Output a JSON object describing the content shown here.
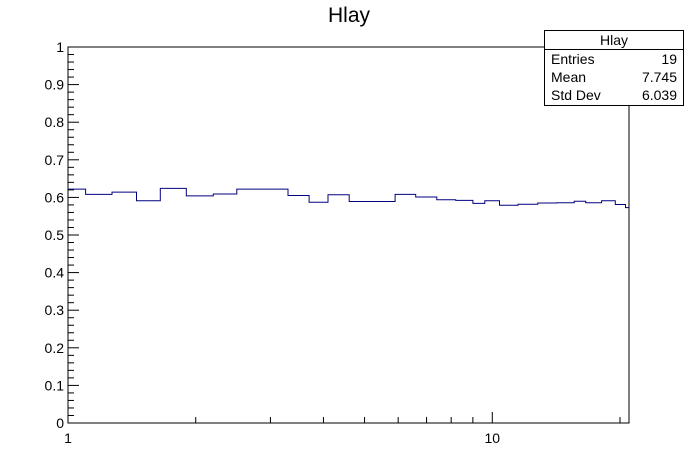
{
  "chart_data": {
    "type": "line",
    "title": "Hlay",
    "xlabel": "",
    "ylabel": "",
    "x_scale": "log",
    "xlim": [
      1,
      21
    ],
    "ylim": [
      0,
      1
    ],
    "grid": false,
    "line_color": "#000080",
    "y_ticks": [
      "0",
      "0.1",
      "0.2",
      "0.3",
      "0.4",
      "0.5",
      "0.6",
      "0.7",
      "0.8",
      "0.9",
      "1"
    ],
    "x_tick_labels": [
      {
        "value": 1,
        "label": "1"
      },
      {
        "value": 10,
        "label": "10"
      }
    ],
    "bins": [
      {
        "x0": 1.0,
        "x1": 1.1,
        "y": 0.622
      },
      {
        "x0": 1.1,
        "x1": 1.27,
        "y": 0.608
      },
      {
        "x0": 1.27,
        "x1": 1.45,
        "y": 0.614
      },
      {
        "x0": 1.45,
        "x1": 1.65,
        "y": 0.591
      },
      {
        "x0": 1.65,
        "x1": 1.9,
        "y": 0.624
      },
      {
        "x0": 1.9,
        "x1": 2.2,
        "y": 0.604
      },
      {
        "x0": 2.2,
        "x1": 2.5,
        "y": 0.609
      },
      {
        "x0": 2.5,
        "x1": 3.3,
        "y": 0.622
      },
      {
        "x0": 3.3,
        "x1": 3.7,
        "y": 0.605
      },
      {
        "x0": 3.7,
        "x1": 4.1,
        "y": 0.587
      },
      {
        "x0": 4.1,
        "x1": 4.6,
        "y": 0.607
      },
      {
        "x0": 4.6,
        "x1": 5.9,
        "y": 0.589
      },
      {
        "x0": 5.9,
        "x1": 6.6,
        "y": 0.608
      },
      {
        "x0": 6.6,
        "x1": 7.4,
        "y": 0.601
      },
      {
        "x0": 7.4,
        "x1": 8.2,
        "y": 0.594
      },
      {
        "x0": 8.2,
        "x1": 9.0,
        "y": 0.592
      },
      {
        "x0": 9.0,
        "x1": 9.6,
        "y": 0.584
      },
      {
        "x0": 9.6,
        "x1": 10.4,
        "y": 0.591
      },
      {
        "x0": 10.4,
        "x1": 11.5,
        "y": 0.579
      },
      {
        "x0": 11.5,
        "x1": 12.8,
        "y": 0.582
      },
      {
        "x0": 12.8,
        "x1": 14.2,
        "y": 0.585
      },
      {
        "x0": 14.2,
        "x1": 15.6,
        "y": 0.586
      },
      {
        "x0": 15.6,
        "x1": 16.6,
        "y": 0.59
      },
      {
        "x0": 16.6,
        "x1": 18.1,
        "y": 0.586
      },
      {
        "x0": 18.1,
        "x1": 19.5,
        "y": 0.591
      },
      {
        "x0": 19.5,
        "x1": 20.6,
        "y": 0.581
      },
      {
        "x0": 20.6,
        "x1": 21.0,
        "y": 0.573
      }
    ]
  },
  "stats_box": {
    "title": "Hlay",
    "entries_label": "Entries",
    "entries_value": "19",
    "mean_label": "Mean",
    "mean_value": "7.745",
    "stddev_label": "Std Dev",
    "stddev_value": "6.039"
  }
}
